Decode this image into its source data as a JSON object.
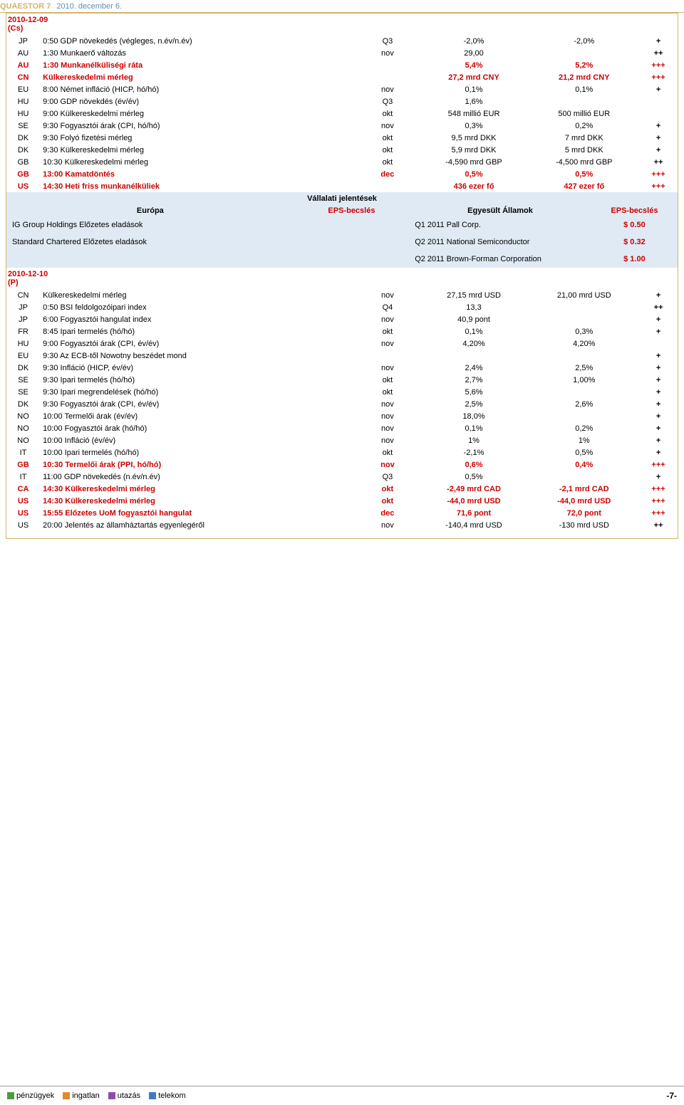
{
  "header": {
    "brand": "QUAESTOR 7",
    "date": "2010. december 6."
  },
  "colors": {
    "accent_red": "#cc0000",
    "border_gold": "#d2b46a",
    "section_blue": "#dfeaf4",
    "header_blue": "#5f8db7"
  },
  "day1": {
    "date": "2010-12-09",
    "dow": "(Cs)",
    "rows": [
      {
        "c": "JP",
        "d": "0:50 GDP növekedés (végleges, n.év/n.év)",
        "p": "Q3",
        "v1": "-2,0%",
        "v2": "-2,0%",
        "i": "+",
        "red": false
      },
      {
        "c": "AU",
        "d": "1:30 Munkaerő változás",
        "p": "nov",
        "v1": "29,00",
        "v2": "",
        "i": "++",
        "red": false
      },
      {
        "c": "AU",
        "d": "1:30 Munkanélküliségi ráta",
        "p": "",
        "v1": "5,4%",
        "v2": "5,2%",
        "i": "+++",
        "red": true
      },
      {
        "c": "CN",
        "d": "Külkereskedelmi mérleg",
        "p": "",
        "v1": "27,2 mrd CNY",
        "v2": "21,2 mrd CNY",
        "i": "+++",
        "red": true
      },
      {
        "c": "EU",
        "d": "8:00 Német infláció (HICP, hó/hó)",
        "p": "nov",
        "v1": "0,1%",
        "v2": "0,1%",
        "i": "+",
        "red": false
      },
      {
        "c": "HU",
        "d": "9:00 GDP növekdés (év/év)",
        "p": "Q3",
        "v1": "1,6%",
        "v2": "",
        "i": "",
        "red": false
      },
      {
        "c": "HU",
        "d": "9:00 Külkereskedelmi mérleg",
        "p": "okt",
        "v1": "548 millió EUR",
        "v2": "500 millió EUR",
        "i": "",
        "red": false
      },
      {
        "c": "SE",
        "d": "9:30 Fogyasztói árak (CPI, hó/hó)",
        "p": "nov",
        "v1": "0,3%",
        "v2": "0,2%",
        "i": "+",
        "red": false
      },
      {
        "c": "DK",
        "d": "9:30 Folyó fizetési mérleg",
        "p": "okt",
        "v1": "9,5 mrd DKK",
        "v2": "7 mrd DKK",
        "i": "+",
        "red": false
      },
      {
        "c": "DK",
        "d": "9:30 Külkereskedelmi mérleg",
        "p": "okt",
        "v1": "5,9 mrd DKK",
        "v2": "5 mrd DKK",
        "i": "+",
        "red": false
      },
      {
        "c": "GB",
        "d": "10:30 Külkereskedelmi mérleg",
        "p": "okt",
        "v1": "-4,590 mrd GBP",
        "v2": "-4,500 mrd GBP",
        "i": "++",
        "red": false
      },
      {
        "c": "GB",
        "d": "13:00 Kamatdöntés",
        "p": "dec",
        "v1": "0,5%",
        "v2": "0,5%",
        "i": "+++",
        "red": true
      },
      {
        "c": "US",
        "d": "14:30 Heti friss munkanélküliek",
        "p": "",
        "v1": "436 ezer fő",
        "v2": "427 ezer fő",
        "i": "+++",
        "red": true
      }
    ]
  },
  "corp": {
    "title": "Vállalati jelentések",
    "europe_label": "Európa",
    "eps_label": "EPS-becslés",
    "us_label": "Egyesült Államok",
    "rows": [
      {
        "eu": "IG Group Holdings Előzetes eladások",
        "eu_eps": "",
        "us": "Q1 2011 Pall Corp.",
        "us_eps": "$ 0.50"
      },
      {
        "eu": "Standard Chartered Előzetes eladások",
        "eu_eps": "",
        "us": "Q2 2011 National Semiconductor",
        "us_eps": "$ 0.32"
      },
      {
        "eu": "",
        "eu_eps": "",
        "us": "Q2 2011 Brown-Forman Corporation",
        "us_eps": "$ 1.00"
      }
    ]
  },
  "day2": {
    "date": "2010-12-10",
    "dow": "(P)",
    "rows": [
      {
        "c": "CN",
        "d": "Külkereskedelmi mérleg",
        "p": "nov",
        "v1": "27,15 mrd USD",
        "v2": "21,00 mrd USD",
        "i": "+",
        "red": false
      },
      {
        "c": "JP",
        "d": "0:50 BSI feldolgozóipari index",
        "p": "Q4",
        "v1": "13,3",
        "v2": "",
        "i": "++",
        "red": false
      },
      {
        "c": "JP",
        "d": "6:00 Fogyasztói hangulat index",
        "p": "nov",
        "v1": "40,9 pont",
        "v2": "",
        "i": "+",
        "red": false
      },
      {
        "c": "FR",
        "d": "8:45 Ipari termelés (hó/hó)",
        "p": "okt",
        "v1": "0,1%",
        "v2": "0,3%",
        "i": "+",
        "red": false
      },
      {
        "c": "HU",
        "d": "9:00 Fogyasztói árak (CPI, év/év)",
        "p": "nov",
        "v1": "4,20%",
        "v2": "4,20%",
        "i": "",
        "red": false
      },
      {
        "c": "EU",
        "d": "9:30 Az ECB-től Nowotny beszédet mond",
        "p": "",
        "v1": "",
        "v2": "",
        "i": "+",
        "red": false
      },
      {
        "c": "DK",
        "d": "9:30 Infláció (HICP, év/év)",
        "p": "nov",
        "v1": "2,4%",
        "v2": "2,5%",
        "i": "+",
        "red": false
      },
      {
        "c": "SE",
        "d": "9:30 Ipari termelés (hó/hó)",
        "p": "okt",
        "v1": "2,7%",
        "v2": "1,00%",
        "i": "+",
        "red": false
      },
      {
        "c": "SE",
        "d": "9:30 Ipari megrendelések (hó/hó)",
        "p": "okt",
        "v1": "5,6%",
        "v2": "",
        "i": "+",
        "red": false
      },
      {
        "c": "DK",
        "d": "9:30 Fogyasztói árak (CPI, év/év)",
        "p": "nov",
        "v1": "2,5%",
        "v2": "2,6%",
        "i": "+",
        "red": false
      },
      {
        "c": "NO",
        "d": "10:00 Termelői árak (év/év)",
        "p": "nov",
        "v1": "18,0%",
        "v2": "",
        "i": "+",
        "red": false
      },
      {
        "c": "NO",
        "d": "10:00 Fogyasztói árak (hó/hó)",
        "p": "nov",
        "v1": "0,1%",
        "v2": "0,2%",
        "i": "+",
        "red": false
      },
      {
        "c": "NO",
        "d": "10:00 Infláció (év/év)",
        "p": "nov",
        "v1": "1%",
        "v2": "1%",
        "i": "+",
        "red": false
      },
      {
        "c": "IT",
        "d": "10:00 Ipari termelés (hó/hó)",
        "p": "okt",
        "v1": "-2,1%",
        "v2": "0,5%",
        "i": "+",
        "red": false
      },
      {
        "c": "GB",
        "d": "10:30 Termelői árak (PPI, hó/hó)",
        "p": "nov",
        "v1": "0,6%",
        "v2": "0,4%",
        "i": "+++",
        "red": true
      },
      {
        "c": "IT",
        "d": "11:00 GDP növekedés (n.év/n.év)",
        "p": "Q3",
        "v1": "0,5%",
        "v2": "",
        "i": "+",
        "red": false
      },
      {
        "c": "CA",
        "d": "14:30 Külkereskedelmi mérleg",
        "p": "okt",
        "v1": "-2,49 mrd CAD",
        "v2": "-2,1 mrd CAD",
        "i": "+++",
        "red": true
      },
      {
        "c": "US",
        "d": "14:30 Külkereskedelmi mérleg",
        "p": "okt",
        "v1": "-44,0 mrd USD",
        "v2": "-44,0 mrd USD",
        "i": "+++",
        "red": true
      },
      {
        "c": "US",
        "d": "15:55 Előzetes UoM fogyasztói hangulat",
        "p": "dec",
        "v1": "71,6 pont",
        "v2": "72,0 pont",
        "i": "+++",
        "red": true
      },
      {
        "c": "US",
        "d": "20:00 Jelentés az államháztartás egyenlegéről",
        "p": "nov",
        "v1": "-140,4 mrd USD",
        "v2": "-130 mrd USD",
        "i": "++",
        "red": false
      }
    ]
  },
  "footer": {
    "items": [
      {
        "label": "pénzügyek",
        "color": "c-green"
      },
      {
        "label": "ingatlan",
        "color": "c-orange"
      },
      {
        "label": "utazás",
        "color": "c-purple"
      },
      {
        "label": "telekom",
        "color": "c-blue"
      }
    ],
    "page": "-7-"
  }
}
